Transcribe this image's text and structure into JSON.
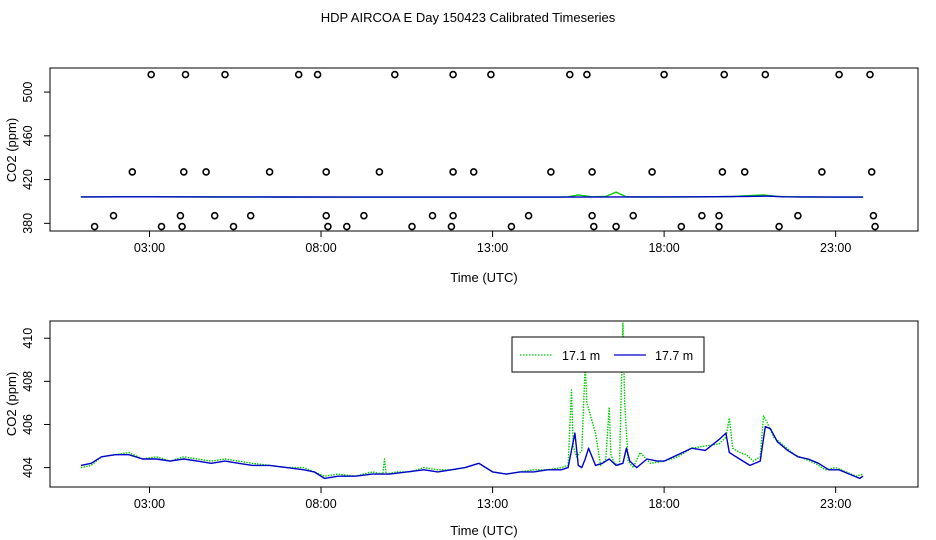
{
  "figure": {
    "title": "HDP AIRCOA E  Day 150423  Calibrated Timeseries"
  },
  "colors": {
    "green": "#00cc00",
    "blue": "#0000cc",
    "black": "#000000"
  },
  "chart_data": [
    {
      "type": "scatter",
      "xlabel": "Time (UTC)",
      "ylabel": "CO2 (ppm)",
      "x_unit": "hours UTC",
      "xlim": [
        0.1,
        25.4
      ],
      "ylim": [
        373,
        522
      ],
      "x_ticks": [
        {
          "value": 3,
          "label": "03:00"
        },
        {
          "value": 8,
          "label": "08:00"
        },
        {
          "value": 13,
          "label": "13:00"
        },
        {
          "value": 18,
          "label": "18:00"
        },
        {
          "value": 23,
          "label": "23:00"
        }
      ],
      "y_ticks": [
        {
          "value": 380,
          "label": "380"
        },
        {
          "value": 420,
          "label": "420"
        },
        {
          "value": 460,
          "label": "460"
        },
        {
          "value": 500,
          "label": "500"
        }
      ],
      "markers": "open-circle",
      "points": [
        {
          "x": 1.4,
          "y": 377
        },
        {
          "x": 3.35,
          "y": 377
        },
        {
          "x": 3.95,
          "y": 377
        },
        {
          "x": 5.45,
          "y": 377
        },
        {
          "x": 8.2,
          "y": 377
        },
        {
          "x": 8.75,
          "y": 377
        },
        {
          "x": 10.65,
          "y": 377
        },
        {
          "x": 11.8,
          "y": 377
        },
        {
          "x": 13.55,
          "y": 377
        },
        {
          "x": 15.95,
          "y": 377
        },
        {
          "x": 16.6,
          "y": 377
        },
        {
          "x": 18.5,
          "y": 377
        },
        {
          "x": 19.6,
          "y": 377
        },
        {
          "x": 21.35,
          "y": 377
        },
        {
          "x": 24.15,
          "y": 377
        },
        {
          "x": 1.95,
          "y": 387
        },
        {
          "x": 3.9,
          "y": 387
        },
        {
          "x": 4.9,
          "y": 387
        },
        {
          "x": 5.95,
          "y": 387
        },
        {
          "x": 8.15,
          "y": 387
        },
        {
          "x": 9.25,
          "y": 387
        },
        {
          "x": 11.25,
          "y": 387
        },
        {
          "x": 11.85,
          "y": 387
        },
        {
          "x": 14.05,
          "y": 387
        },
        {
          "x": 15.9,
          "y": 387
        },
        {
          "x": 17.1,
          "y": 387
        },
        {
          "x": 19.1,
          "y": 387
        },
        {
          "x": 19.6,
          "y": 387
        },
        {
          "x": 21.9,
          "y": 387
        },
        {
          "x": 24.1,
          "y": 387
        },
        {
          "x": 2.5,
          "y": 427
        },
        {
          "x": 4.0,
          "y": 427
        },
        {
          "x": 4.65,
          "y": 427
        },
        {
          "x": 6.5,
          "y": 427
        },
        {
          "x": 8.15,
          "y": 427
        },
        {
          "x": 9.7,
          "y": 427
        },
        {
          "x": 11.85,
          "y": 427
        },
        {
          "x": 12.45,
          "y": 427
        },
        {
          "x": 14.7,
          "y": 427
        },
        {
          "x": 15.9,
          "y": 427
        },
        {
          "x": 17.65,
          "y": 427
        },
        {
          "x": 19.7,
          "y": 427
        },
        {
          "x": 20.35,
          "y": 427
        },
        {
          "x": 22.6,
          "y": 427
        },
        {
          "x": 24.05,
          "y": 427
        },
        {
          "x": 3.05,
          "y": 516
        },
        {
          "x": 4.05,
          "y": 516
        },
        {
          "x": 5.2,
          "y": 516
        },
        {
          "x": 7.35,
          "y": 516
        },
        {
          "x": 7.9,
          "y": 516
        },
        {
          "x": 10.15,
          "y": 516
        },
        {
          "x": 11.85,
          "y": 516
        },
        {
          "x": 12.95,
          "y": 516
        },
        {
          "x": 15.25,
          "y": 516
        },
        {
          "x": 15.75,
          "y": 516
        },
        {
          "x": 18.0,
          "y": 516
        },
        {
          "x": 19.75,
          "y": 516
        },
        {
          "x": 20.95,
          "y": 516
        },
        {
          "x": 23.1,
          "y": 516
        },
        {
          "x": 24.0,
          "y": 516
        }
      ],
      "series": [
        {
          "color": "green",
          "x": [
            1.0,
            2.0,
            3.0,
            5.0,
            7.0,
            9.0,
            11.0,
            13.0,
            15.0,
            15.2,
            15.5,
            15.9,
            16.3,
            16.6,
            16.9,
            17.2,
            17.6,
            18.0,
            19.0,
            20.0,
            20.9,
            21.3,
            22.0,
            23.0,
            23.8
          ],
          "values": [
            404.2,
            404.3,
            404.3,
            404.1,
            404.0,
            404.0,
            404.0,
            404.0,
            404.0,
            404.3,
            406,
            404.3,
            404.6,
            408.6,
            404.2,
            404.1,
            404.0,
            404.0,
            404.2,
            404.5,
            406,
            404.5,
            404.0,
            404.0,
            404.0
          ]
        },
        {
          "color": "blue",
          "x": [
            1.0,
            3.0,
            5.0,
            7.0,
            9.0,
            11.0,
            13.0,
            15.0,
            17.0,
            19.0,
            20.5,
            21.0,
            21.5,
            23.0,
            23.8
          ],
          "values": [
            404.2,
            404.3,
            404.2,
            404.1,
            404.0,
            404.0,
            404.0,
            404.0,
            404.2,
            404.3,
            404.6,
            404.9,
            404.3,
            404.0,
            404.0
          ]
        }
      ]
    },
    {
      "type": "line",
      "xlabel": "Time (UTC)",
      "ylabel": "CO2 (ppm)",
      "x_unit": "hours UTC",
      "xlim": [
        0.1,
        25.4
      ],
      "ylim": [
        403.1,
        410.8
      ],
      "x_ticks": [
        {
          "value": 3,
          "label": "03:00"
        },
        {
          "value": 8,
          "label": "08:00"
        },
        {
          "value": 13,
          "label": "13:00"
        },
        {
          "value": 18,
          "label": "18:00"
        },
        {
          "value": 23,
          "label": "23:00"
        }
      ],
      "y_ticks": [
        {
          "value": 404,
          "label": "404"
        },
        {
          "value": 406,
          "label": "406"
        },
        {
          "value": 408,
          "label": "408"
        },
        {
          "value": 410,
          "label": "410"
        }
      ],
      "legend": {
        "placement": "top-center",
        "entries": [
          {
            "name": "17.1 m",
            "color": "green"
          },
          {
            "name": "17.7 m",
            "color": "blue"
          }
        ]
      },
      "series": [
        {
          "name": "17.1 m",
          "color": "green",
          "style": "dotted",
          "x": [
            1.0,
            1.3,
            1.6,
            2.0,
            2.4,
            2.8,
            3.2,
            3.6,
            4.0,
            4.4,
            4.8,
            5.2,
            5.6,
            6.0,
            6.5,
            7.0,
            7.5,
            7.8,
            8.1,
            8.5,
            9.0,
            9.5,
            9.8,
            9.85,
            9.9,
            10.2,
            10.6,
            11.0,
            11.4,
            11.8,
            12.2,
            12.6,
            13.0,
            13.4,
            13.8,
            14.2,
            14.6,
            15.0,
            15.2,
            15.3,
            15.35,
            15.45,
            15.6,
            15.7,
            15.75,
            16.0,
            16.15,
            16.3,
            16.4,
            16.45,
            16.55,
            16.7,
            16.8,
            16.85,
            16.95,
            17.1,
            17.3,
            17.6,
            18.0,
            18.4,
            18.8,
            19.2,
            19.6,
            19.8,
            19.9,
            20.0,
            20.2,
            20.4,
            20.6,
            20.8,
            20.9,
            21.0,
            21.2,
            21.5,
            21.8,
            22.1,
            22.4,
            22.7,
            23.0,
            23.3,
            23.6,
            23.8
          ],
          "values": [
            404.0,
            404.1,
            404.5,
            404.6,
            404.7,
            404.4,
            404.5,
            404.3,
            404.5,
            404.4,
            404.3,
            404.4,
            404.3,
            404.2,
            404.1,
            404.0,
            404.0,
            403.8,
            403.6,
            403.7,
            403.6,
            403.8,
            403.7,
            404.4,
            403.7,
            403.8,
            403.8,
            404.0,
            403.9,
            403.9,
            404.0,
            404.2,
            403.8,
            403.7,
            403.8,
            403.9,
            403.9,
            404.0,
            404.1,
            407.6,
            405.0,
            404.5,
            404.8,
            408.8,
            407.0,
            405.6,
            404.1,
            404.4,
            406.8,
            404.6,
            404.2,
            404.1,
            410.7,
            407.0,
            404.3,
            404.0,
            404.7,
            404.2,
            404.3,
            404.5,
            404.9,
            405.0,
            405.1,
            405.4,
            406.3,
            404.9,
            404.7,
            404.6,
            404.3,
            404.5,
            406.4,
            406.1,
            405.4,
            405.0,
            404.6,
            404.4,
            404.2,
            403.9,
            404.0,
            403.8,
            403.6,
            403.7
          ]
        },
        {
          "name": "17.7 m",
          "color": "blue",
          "style": "solid",
          "x": [
            1.0,
            1.3,
            1.6,
            2.0,
            2.4,
            2.8,
            3.2,
            3.6,
            4.0,
            4.4,
            4.8,
            5.2,
            5.6,
            6.0,
            6.5,
            7.0,
            7.5,
            7.8,
            8.1,
            8.5,
            9.0,
            9.5,
            10.0,
            10.5,
            11.0,
            11.4,
            11.8,
            12.2,
            12.6,
            13.0,
            13.4,
            13.8,
            14.2,
            14.6,
            15.0,
            15.2,
            15.4,
            15.5,
            15.6,
            15.7,
            15.8,
            16.0,
            16.2,
            16.4,
            16.6,
            16.8,
            16.9,
            17.0,
            17.2,
            17.5,
            17.8,
            18.0,
            18.4,
            18.8,
            19.2,
            19.6,
            19.8,
            19.9,
            20.0,
            20.2,
            20.5,
            20.8,
            20.95,
            21.1,
            21.3,
            21.6,
            21.9,
            22.2,
            22.5,
            22.8,
            23.1,
            23.4,
            23.7,
            23.8
          ],
          "values": [
            404.1,
            404.2,
            404.5,
            404.6,
            404.6,
            404.4,
            404.4,
            404.3,
            404.4,
            404.3,
            404.2,
            404.3,
            404.2,
            404.1,
            404.1,
            404.0,
            403.9,
            403.8,
            403.5,
            403.6,
            403.6,
            403.7,
            403.7,
            403.8,
            403.9,
            403.8,
            403.9,
            404.0,
            404.2,
            403.8,
            403.7,
            403.8,
            403.8,
            403.9,
            403.9,
            404.0,
            405.6,
            404.1,
            404.0,
            404.4,
            404.9,
            404.1,
            404.2,
            404.4,
            404.1,
            404.2,
            404.9,
            404.3,
            404.0,
            404.4,
            404.3,
            404.3,
            404.6,
            404.9,
            404.8,
            405.3,
            405.6,
            404.7,
            404.6,
            404.4,
            404.1,
            404.3,
            405.9,
            405.8,
            405.2,
            404.8,
            404.5,
            404.4,
            404.2,
            403.9,
            403.9,
            403.7,
            403.5,
            403.6
          ]
        }
      ]
    }
  ]
}
